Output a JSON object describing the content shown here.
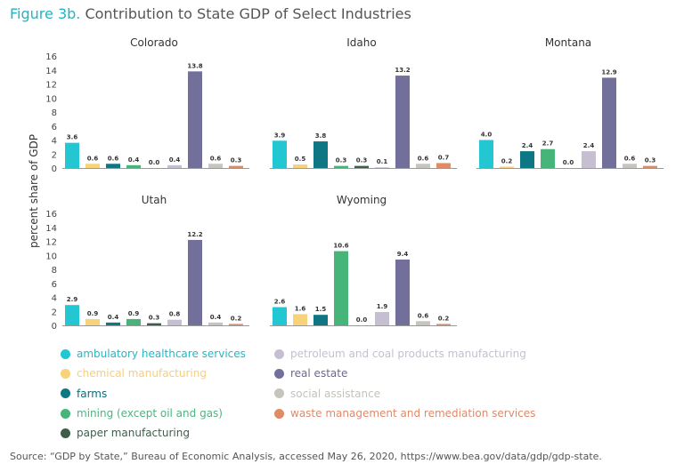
{
  "figure_label": "Figure 3b.",
  "figure_title": "Contribution to State GDP of Select Industries",
  "source": "Source: “GDP by State,” Bureau of Economic Analysis, accessed May 26, 2020, https://www.bea.gov/data/gdp/gdp-state.",
  "chart_data": {
    "type": "bar",
    "ylabel": "percent share of GDP",
    "ylim": [
      0,
      16
    ],
    "yticks": [
      "0",
      "2",
      "4",
      "6",
      "8",
      "10",
      "12",
      "14",
      "16"
    ],
    "grid": false,
    "legend_placement": "bottom",
    "categories": [
      "ambulatory healthcare services",
      "chemical manufacturing",
      "farms",
      "mining (except oil and gas)",
      "paper manufacturing",
      "petroleum and coal products manufacturing",
      "real estate",
      "social assistance",
      "waste management and remediation services"
    ],
    "colors": [
      "#22c7d2",
      "#f8d27a",
      "#0f7683",
      "#47b57a",
      "#3e5e4c",
      "#c6bfd2",
      "#72709a",
      "#c6c4bd",
      "#e08a66"
    ],
    "legend_text_colors": [
      "#22b8c6",
      "#f5cf7c",
      "#0e6b78",
      "#4fb37f",
      "#3e5e4c",
      "#c6bfd2",
      "#6b6890",
      "#c4c2bc",
      "#e0896a"
    ],
    "panels": [
      {
        "state": "Colorado",
        "values": [
          3.6,
          0.6,
          0.6,
          0.4,
          0.0,
          0.4,
          13.8,
          0.6,
          0.3
        ],
        "labels": [
          "3.6",
          "0.6",
          "0.6",
          "0.4",
          "0.0",
          "0.4",
          "13.8",
          "0.6",
          "0.3"
        ]
      },
      {
        "state": "Idaho",
        "values": [
          3.9,
          0.5,
          3.8,
          0.3,
          0.3,
          0.1,
          13.2,
          0.6,
          0.7
        ],
        "labels": [
          "3.9",
          "0.5",
          "3.8",
          "0.3",
          "0.3",
          "0.1",
          "13.2",
          "0.6",
          "0.7"
        ]
      },
      {
        "state": "Montana",
        "values": [
          4.0,
          0.2,
          2.4,
          2.7,
          0.0,
          2.4,
          12.9,
          0.6,
          0.3
        ],
        "labels": [
          "4.0",
          "0.2",
          "2.4",
          "2.7",
          "0.0",
          "2.4",
          "12.9",
          "0.6",
          "0.3"
        ]
      },
      {
        "state": "Utah",
        "values": [
          2.9,
          0.9,
          0.4,
          0.9,
          0.3,
          0.8,
          12.2,
          0.4,
          0.2
        ],
        "labels": [
          "2.9",
          "0.9",
          "0.4",
          "0.9",
          "0.3",
          "0.8",
          "12.2",
          "0.4",
          "0.2"
        ]
      },
      {
        "state": "Wyoming",
        "values": [
          2.6,
          1.6,
          1.5,
          10.6,
          0.0,
          1.9,
          9.4,
          0.6,
          0.2
        ],
        "labels": [
          "2.6",
          "1.6",
          "1.5",
          "10.6",
          "0.0",
          "1.9",
          "9.4",
          "0.6",
          "0.2"
        ]
      }
    ]
  }
}
